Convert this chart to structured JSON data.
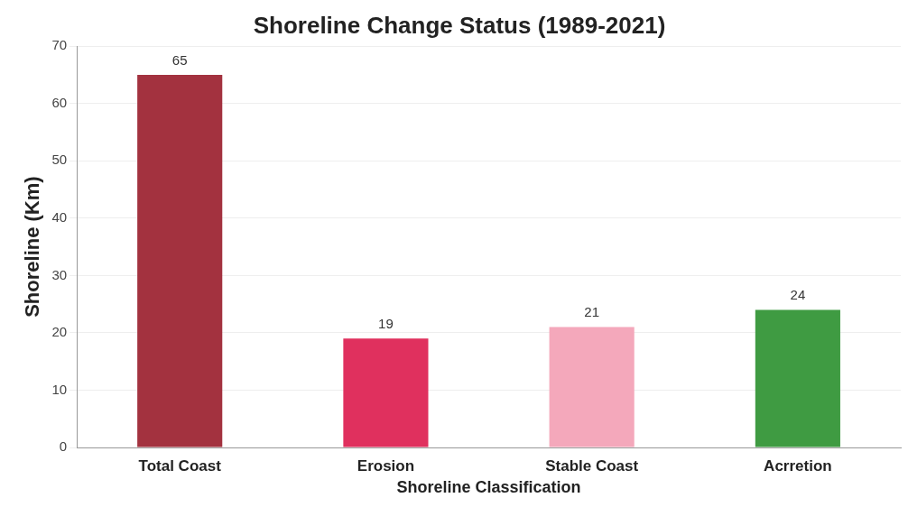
{
  "chart_data": {
    "type": "bar",
    "title": "Shoreline Change Status (1989-2021)",
    "xlabel": "Shoreline Classification",
    "ylabel": "Shoreline (Km)",
    "categories": [
      "Total Coast",
      "Erosion",
      "Stable Coast",
      "Acrretion"
    ],
    "values": [
      65,
      19,
      21,
      24
    ],
    "colors": [
      "#a3323f",
      "#e0305e",
      "#f4a8bb",
      "#3f9b42"
    ],
    "ylim": [
      0,
      70
    ],
    "yticks": [
      0,
      10,
      20,
      30,
      40,
      50,
      60,
      70
    ],
    "grid": "y",
    "data_labels": true,
    "legend": false
  }
}
